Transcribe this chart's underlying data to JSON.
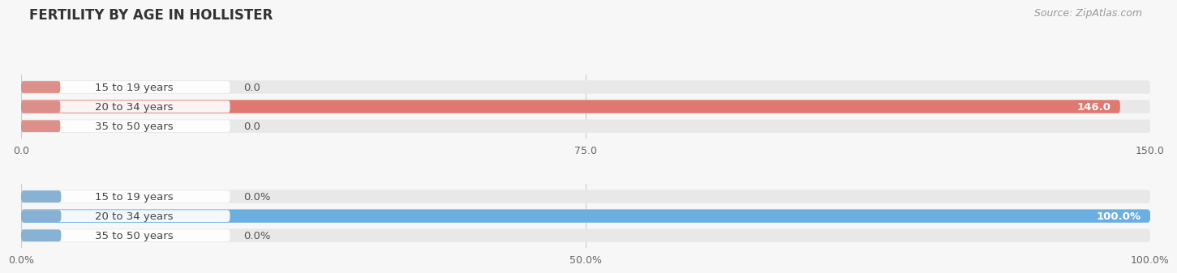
{
  "title": "FERTILITY BY AGE IN HOLLISTER",
  "source": "Source: ZipAtlas.com",
  "top_chart": {
    "categories": [
      "15 to 19 years",
      "20 to 34 years",
      "35 to 50 years"
    ],
    "values": [
      0.0,
      146.0,
      0.0
    ],
    "xlim": [
      0,
      150
    ],
    "xticks": [
      0.0,
      75.0,
      150.0
    ],
    "xtick_labels": [
      "0.0",
      "75.0",
      "150.0"
    ],
    "bar_color": "#E07870",
    "bar_bg_color": "#E8E8E8",
    "label_bg_color_left": "#D9847C",
    "label_bg_color": "#F5E0DF",
    "value_labels": [
      "0.0",
      "146.0",
      "0.0"
    ]
  },
  "bottom_chart": {
    "categories": [
      "15 to 19 years",
      "20 to 34 years",
      "35 to 50 years"
    ],
    "values": [
      0.0,
      100.0,
      0.0
    ],
    "xlim": [
      0,
      100
    ],
    "xticks": [
      0.0,
      50.0,
      100.0
    ],
    "xtick_labels": [
      "0.0%",
      "50.0%",
      "100.0%"
    ],
    "bar_color": "#6AAFE0",
    "bar_bg_color": "#E8E8E8",
    "label_bg_color_left": "#7AAAD0",
    "label_bg_color": "#C8DCF0",
    "value_labels": [
      "0.0%",
      "100.0%",
      "0.0%"
    ]
  },
  "label_text_color": "#444444",
  "value_text_color_on_bar": "#FFFFFF",
  "value_text_color_off_bar": "#555555",
  "bg_color": "#F7F7F7",
  "title_color": "#333333",
  "source_color": "#999999",
  "title_fontsize": 12,
  "label_fontsize": 9.5,
  "tick_fontsize": 9,
  "source_fontsize": 9
}
